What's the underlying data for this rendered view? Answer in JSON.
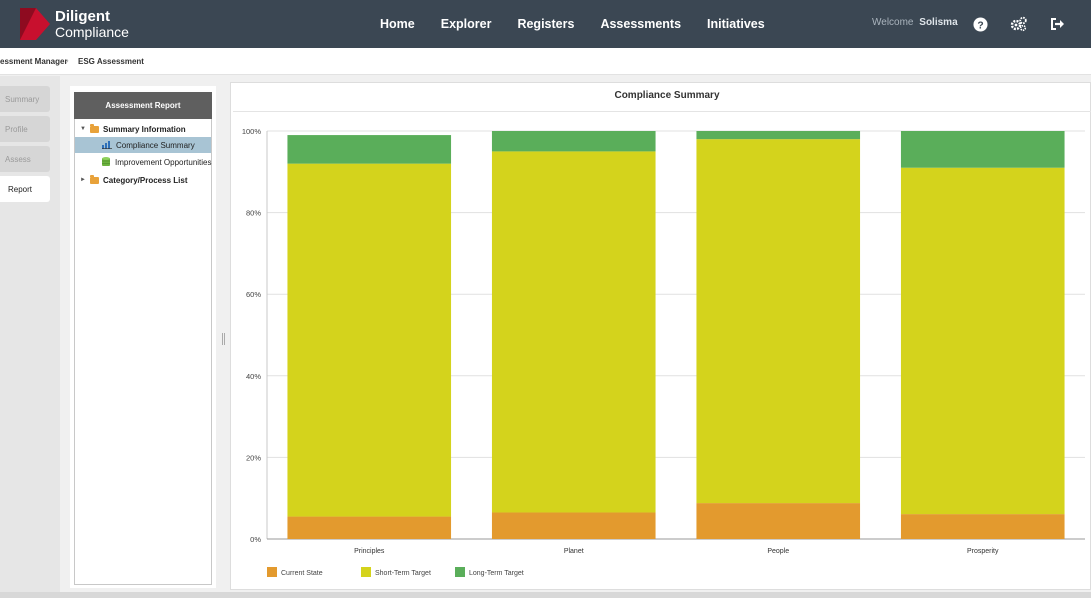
{
  "header": {
    "brand_line1": "Diligent",
    "brand_line2": "Compliance",
    "nav": [
      "Home",
      "Explorer",
      "Registers",
      "Assessments",
      "Initiatives"
    ],
    "welcome_label": "Welcome",
    "user_name": "Solisma",
    "brand_color": "#c8102e"
  },
  "breadcrumb": {
    "items": [
      "essment Manager",
      "ESG Assessment"
    ],
    "separator": "›"
  },
  "steps": [
    "Summary",
    "Profile",
    "Assess",
    "Report"
  ],
  "tree": {
    "header": "Assessment Report",
    "nodes": [
      {
        "label": "Summary Information",
        "icon": "folder-open-icon",
        "expanded": true
      },
      {
        "label": "Compliance Summary",
        "icon": "bar-chart-icon",
        "selected": true
      },
      {
        "label": "Improvement Opportunities",
        "icon": "database-icon"
      },
      {
        "label": "Category/Process List",
        "icon": "folder-icon",
        "expanded": false
      }
    ]
  },
  "chart_title": "Compliance Summary",
  "chart_data": {
    "type": "bar",
    "stacked": true,
    "title": "Compliance Summary",
    "categories": [
      "Principles",
      "Planet",
      "People",
      "Prosperity"
    ],
    "series": [
      {
        "name": "Current State",
        "color": "#e39a2e",
        "values": [
          5.5,
          6.5,
          8.8,
          6.1
        ]
      },
      {
        "name": "Short-Term Target",
        "color": "#d4d31c",
        "values": [
          86.5,
          88.5,
          89.2,
          84.9
        ]
      },
      {
        "name": "Long-Term Target",
        "color": "#5aae5a",
        "values": [
          7.0,
          5.0,
          2.0,
          9.0
        ]
      }
    ],
    "ylim": [
      0,
      100
    ],
    "yticks": [
      "0%",
      "20%",
      "40%",
      "60%",
      "80%",
      "100%"
    ],
    "grid": true,
    "legend_position": "bottom-left"
  }
}
